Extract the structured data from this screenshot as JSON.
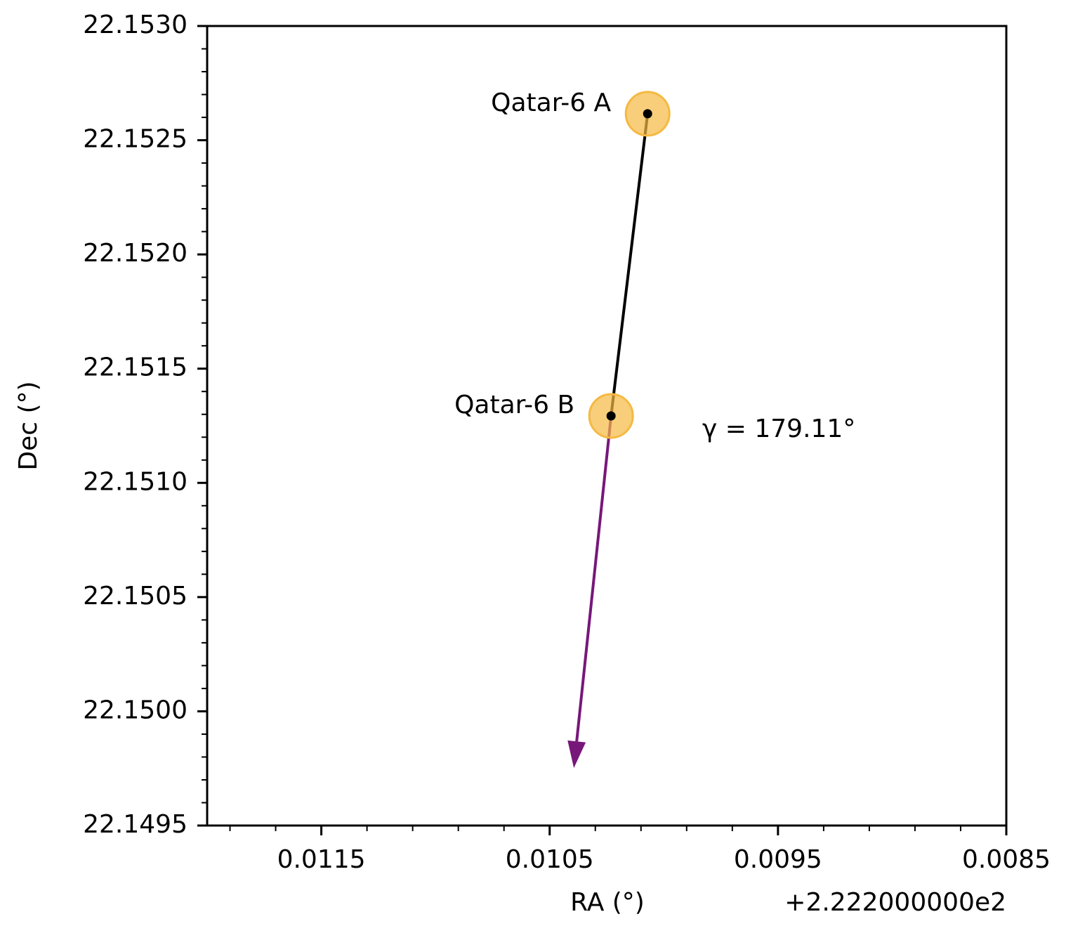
{
  "chart_data": {
    "type": "scatter",
    "xlabel": "RA (°)",
    "ylabel": "Dec (°)",
    "x_offset_label": "+2.222000000e2",
    "xlim": [
      0.012,
      0.0085
    ],
    "ylim": [
      22.1495,
      22.153
    ],
    "xticks": [
      0.0115,
      0.0105,
      0.0095,
      0.0085
    ],
    "yticks": [
      22.1495,
      {
        "value": 22.15,
        "label": "22.1500"
      },
      22.1505,
      {
        "value": 22.151,
        "label": "22.1510"
      },
      22.1515,
      {
        "value": 22.152,
        "label": "22.1520"
      },
      22.1525,
      {
        "value": 22.153,
        "label": "22.1530"
      }
    ],
    "xminorticks": [
      0.0119,
      0.0117,
      0.0113,
      0.0111,
      0.0109,
      0.0107,
      0.0103,
      0.0101,
      0.0099,
      0.0097,
      0.0093,
      0.0091,
      0.0089,
      0.0087
    ],
    "yminorticks": [
      22.1496,
      22.1497,
      22.1498,
      22.1499,
      22.1501,
      22.1502,
      22.1503,
      22.1504,
      22.1506,
      22.1507,
      22.1508,
      22.1509,
      22.1511,
      22.1512,
      22.1513,
      22.1514,
      22.1516,
      22.1517,
      22.1518,
      22.1519,
      22.1521,
      22.1522,
      22.1523,
      22.1524,
      22.1526,
      22.1527,
      22.1528,
      22.1529
    ],
    "points": {
      "labels": [
        "Qatar-6 A",
        "Qatar-6 B"
      ],
      "x": [
        0.010071,
        0.010231
      ],
      "y": [
        22.152616,
        22.151293
      ],
      "color": "#f5b942"
    },
    "arrow": {
      "x": 0.010394,
      "y": 22.149752,
      "color": "#77177a"
    },
    "annotation": "γ = 179.11°"
  }
}
